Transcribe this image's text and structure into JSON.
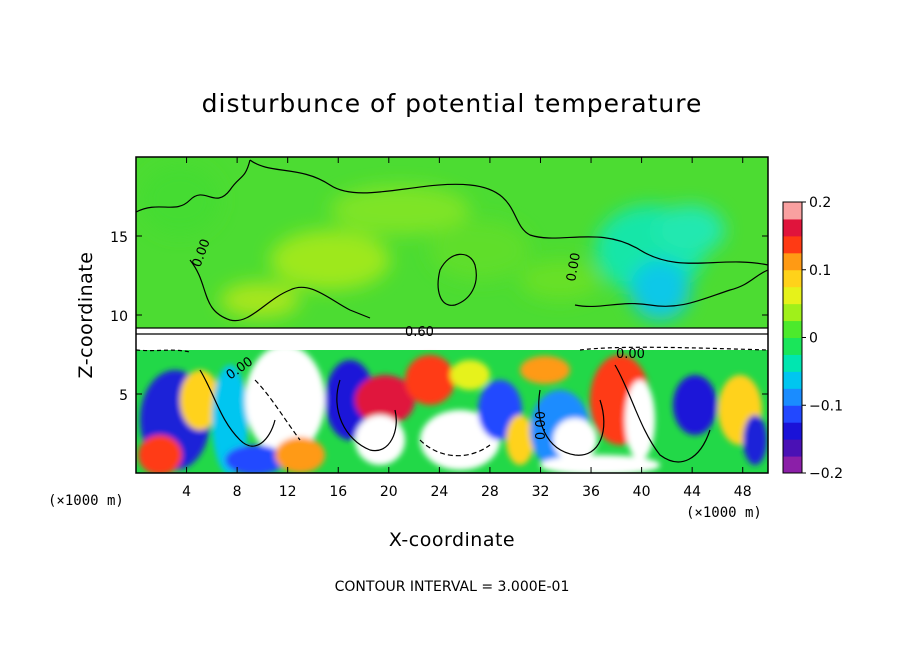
{
  "chart_data": {
    "type": "heatmap",
    "title": "disturbunce of potential temperature",
    "xlabel": "X-coordinate",
    "ylabel": "Z-coordinate",
    "x_unit_left": "(×1000 m)",
    "x_unit_right": "(×1000 m)",
    "x_ticks": [
      "4",
      "8",
      "12",
      "16",
      "20",
      "24",
      "28",
      "32",
      "36",
      "40",
      "44",
      "48"
    ],
    "x_tick_values": [
      4,
      8,
      12,
      16,
      20,
      24,
      28,
      32,
      36,
      40,
      44,
      48
    ],
    "y_ticks": [
      "5",
      "10",
      "15"
    ],
    "y_tick_values": [
      5,
      10,
      15
    ],
    "xlim": [
      0,
      50
    ],
    "ylim": [
      0,
      20
    ],
    "colorbar": {
      "ticks": [
        "0.2",
        "0.1",
        "0",
        "−0.1",
        "−0.2"
      ],
      "tick_values": [
        0.2,
        0.1,
        0,
        -0.1,
        -0.2
      ],
      "range": [
        -0.2,
        0.2
      ],
      "colors": [
        "#8b1fa8",
        "#4a11b5",
        "#1a12d8",
        "#2248ff",
        "#1a8cff",
        "#00c6f0",
        "#00e6b0",
        "#1ae65a",
        "#4cea2c",
        "#a0f01a",
        "#e6f21a",
        "#ffd21a",
        "#ff9a14",
        "#ff3a14",
        "#e0143c",
        "#f9a0a0"
      ]
    },
    "contour_labels": [
      "0.00",
      "0.00",
      "0.60",
      "0.00",
      "0.00",
      "0.00"
    ],
    "contour_interval_note": "CONTOUR INTERVAL = 3.000E-01",
    "grid": false,
    "legend_position": "right colorbar"
  }
}
